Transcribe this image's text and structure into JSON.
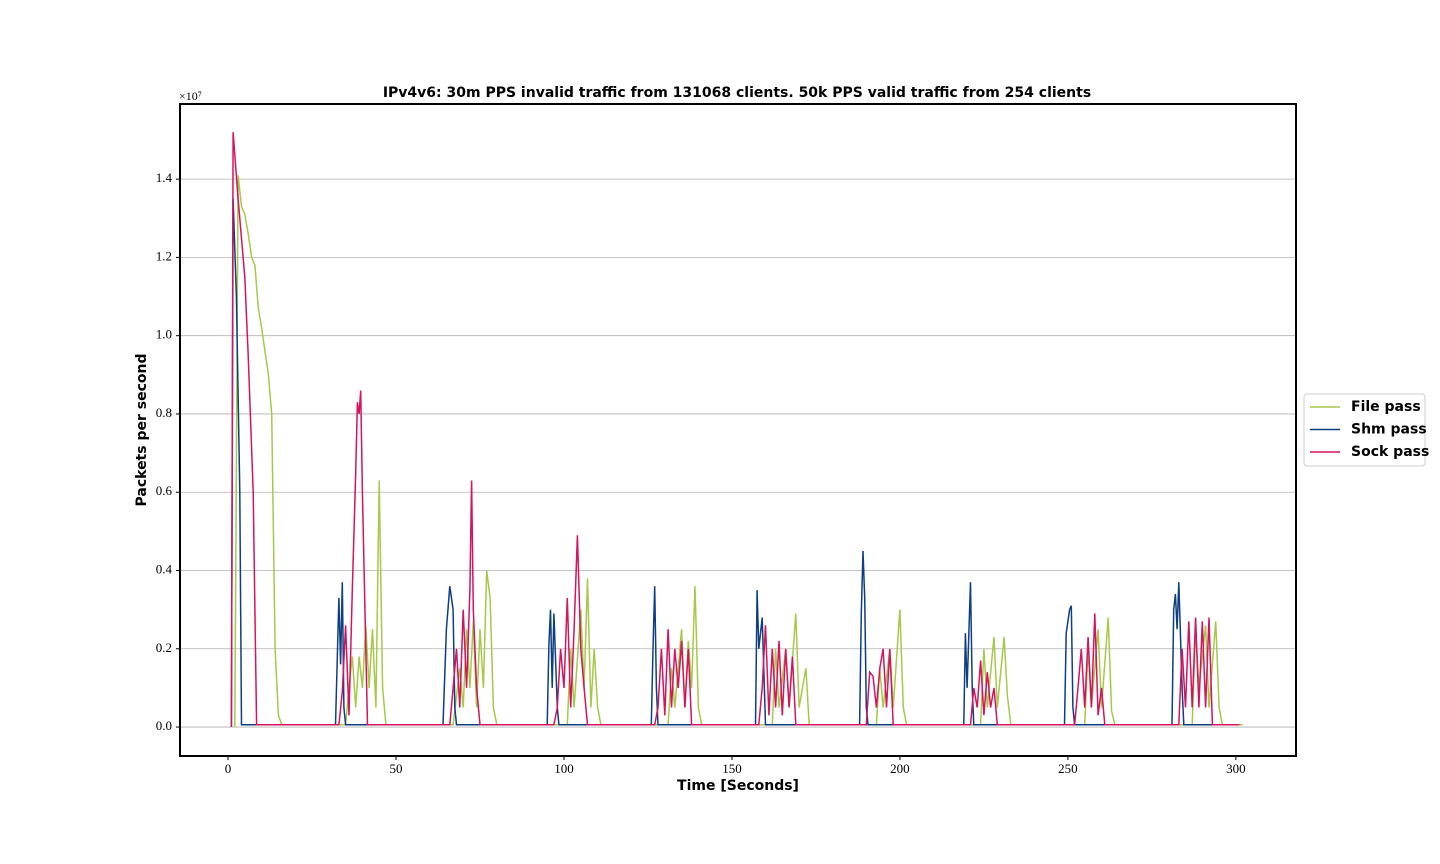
{
  "chart_data": {
    "type": "line",
    "title": "IPv4v6:  30m PPS invalid traffic from 131068 clients.  50k PPS valid traffic from 254 clients",
    "x_label": "Time [Seconds]",
    "y_label": "Packets per second",
    "y_offset_label": "×10⁷",
    "xlim": [
      -14.3,
      317.9
    ],
    "ylim": [
      -0.074,
      1.592
    ],
    "xticks": [
      0,
      50,
      100,
      150,
      200,
      250,
      300
    ],
    "yticks": [
      {
        "value": 0,
        "label": "0.0"
      },
      0.2,
      0.4,
      0.6,
      0.8,
      {
        "value": 1,
        "label": "1.0"
      },
      1.2,
      1.4
    ],
    "grid": true,
    "legend": "right",
    "series": [
      {
        "name": "File pass",
        "color": "#a6c94a",
        "x": [
          2,
          3,
          4,
          5,
          6,
          7,
          8,
          9,
          10,
          12,
          13,
          14,
          15,
          16,
          35,
          36,
          37,
          38,
          39,
          40,
          41,
          42,
          43,
          44,
          45,
          46,
          47,
          67,
          69,
          70,
          71,
          72,
          73,
          74,
          75,
          76,
          77,
          78,
          79,
          80,
          101,
          102,
          103,
          105,
          106,
          107,
          108,
          109,
          110,
          111,
          131,
          132,
          133,
          135,
          136,
          137,
          138,
          139,
          140,
          141,
          162,
          163,
          164,
          166,
          167,
          169,
          170,
          172,
          173,
          193,
          194,
          195,
          197,
          198,
          200,
          201,
          202,
          224,
          225,
          226,
          228,
          229,
          231,
          232,
          233,
          255,
          256,
          257,
          259,
          260,
          262,
          263,
          264,
          287,
          288,
          289,
          291,
          292,
          294,
          295,
          296,
          302
        ],
        "values": [
          0,
          1.41,
          1.33,
          1.31,
          1.26,
          1.2,
          1.18,
          1.07,
          1.02,
          0.9,
          0.8,
          0.2,
          0.03,
          0.006,
          0.006,
          0.1,
          0.18,
          0.05,
          0.18,
          0.1,
          0.26,
          0.1,
          0.25,
          0.05,
          0.63,
          0.1,
          0.006,
          0.006,
          0.15,
          0.05,
          0.25,
          0.1,
          0.27,
          0.05,
          0.25,
          0.1,
          0.4,
          0.33,
          0.05,
          0.006,
          0.006,
          0.2,
          0.05,
          0.3,
          0.1,
          0.38,
          0.05,
          0.2,
          0.05,
          0.006,
          0.006,
          0.15,
          0.05,
          0.25,
          0.05,
          0.22,
          0.1,
          0.36,
          0.05,
          0.006,
          0.006,
          0.2,
          0.05,
          0.2,
          0.05,
          0.29,
          0.05,
          0.15,
          0.006,
          0.006,
          0.15,
          0.05,
          0.2,
          0.05,
          0.3,
          0.05,
          0.006,
          0.006,
          0.2,
          0.05,
          0.23,
          0.05,
          0.23,
          0.08,
          0.006,
          0.006,
          0.2,
          0.05,
          0.25,
          0.05,
          0.28,
          0.04,
          0.006,
          0.006,
          0.25,
          0.1,
          0.26,
          0.05,
          0.27,
          0.05,
          0.006,
          0.006
        ]
      },
      {
        "name": "Shm pass",
        "color": "#0e3f82",
        "x": [
          1,
          1.5,
          2.5,
          3.5,
          4,
          32,
          33,
          33.5,
          34,
          34.5,
          35,
          64,
          65,
          66,
          67,
          67.5,
          68,
          95,
          95.5,
          96,
          96.5,
          97,
          98,
          98.5,
          126,
          126.5,
          127,
          127.5,
          128,
          157,
          157.5,
          158,
          159,
          160,
          188,
          188.5,
          189,
          189.5,
          190,
          190.5,
          219,
          219.5,
          220,
          221,
          221.5,
          222,
          249,
          249.5,
          250.5,
          251,
          251.5,
          252,
          281,
          281.5,
          282,
          282.5,
          283,
          284,
          284.5,
          301
        ],
        "values": [
          0,
          1.35,
          1.1,
          0.6,
          0.006,
          0.006,
          0.33,
          0.16,
          0.37,
          0.05,
          0.006,
          0.006,
          0.25,
          0.36,
          0.3,
          0.05,
          0.006,
          0.006,
          0.21,
          0.3,
          0.1,
          0.29,
          0.05,
          0.006,
          0.006,
          0.2,
          0.36,
          0.1,
          0.006,
          0.006,
          0.35,
          0.2,
          0.28,
          0.006,
          0.006,
          0.29,
          0.45,
          0.33,
          0.05,
          0.006,
          0.006,
          0.24,
          0.1,
          0.37,
          0.1,
          0.006,
          0.006,
          0.24,
          0.3,
          0.31,
          0.05,
          0.006,
          0.006,
          0.3,
          0.34,
          0.25,
          0.37,
          0.1,
          0.006,
          0.006
        ]
      },
      {
        "name": "Sock pass",
        "color": "#d4145f",
        "x": [
          1,
          1.5,
          3,
          5,
          6,
          7.5,
          8,
          8.5,
          33,
          34,
          35,
          36,
          37,
          38,
          38.5,
          39,
          39.5,
          40,
          41,
          41.5,
          66,
          67,
          68,
          69,
          70,
          71,
          72,
          72.5,
          73,
          74,
          75,
          97,
          98,
          99,
          100,
          101,
          102,
          103,
          104,
          105,
          106,
          107,
          127,
          128,
          129,
          130,
          131,
          132,
          133,
          134,
          135,
          136,
          137,
          138,
          158,
          159,
          160,
          161,
          162,
          163,
          164,
          165,
          166,
          167,
          168,
          169,
          190,
          191,
          192,
          193,
          194,
          195,
          196,
          197,
          198,
          221,
          222,
          223,
          224,
          225,
          226,
          227,
          228,
          229,
          252,
          253,
          254,
          255,
          256,
          257,
          258,
          259,
          260,
          261,
          283,
          284,
          285,
          286,
          287,
          288,
          289,
          290,
          291,
          292,
          293,
          301
        ],
        "values": [
          0,
          1.52,
          1.35,
          1.15,
          0.95,
          0.6,
          0.3,
          0.006,
          0.006,
          0.09,
          0.26,
          0.03,
          0.35,
          0.65,
          0.83,
          0.8,
          0.86,
          0.6,
          0.2,
          0.006,
          0.006,
          0.1,
          0.2,
          0.05,
          0.3,
          0.1,
          0.35,
          0.63,
          0.3,
          0.1,
          0.006,
          0.006,
          0.05,
          0.2,
          0.1,
          0.33,
          0.05,
          0.25,
          0.49,
          0.2,
          0.1,
          0.006,
          0.006,
          0.05,
          0.2,
          0.03,
          0.25,
          0.05,
          0.2,
          0.1,
          0.22,
          0.05,
          0.2,
          0.006,
          0.006,
          0.1,
          0.26,
          0.03,
          0.2,
          0.05,
          0.22,
          0.03,
          0.2,
          0.05,
          0.18,
          0.006,
          0.006,
          0.14,
          0.13,
          0.05,
          0.15,
          0.2,
          0.05,
          0.2,
          0.006,
          0.006,
          0.1,
          0.05,
          0.17,
          0.03,
          0.14,
          0.05,
          0.1,
          0.006,
          0.006,
          0.1,
          0.2,
          0.05,
          0.23,
          0.05,
          0.29,
          0.03,
          0.1,
          0.006,
          0.006,
          0.2,
          0.05,
          0.27,
          0.05,
          0.28,
          0.05,
          0.27,
          0.05,
          0.28,
          0.006,
          0.006
        ]
      }
    ]
  }
}
